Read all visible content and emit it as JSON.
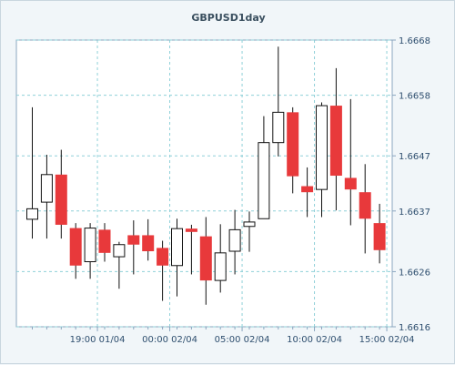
{
  "chart_data": {
    "type": "candlestick",
    "title": "GBPUSD1day",
    "ylim": [
      1.6616,
      1.6668
    ],
    "y_ticks": [
      "1.6616",
      "1.6626",
      "1.6637",
      "1.6647",
      "1.6658",
      "1.6668"
    ],
    "y_tick_values": [
      1.6616,
      1.6626,
      1.6637,
      1.6647,
      1.6658,
      1.6668
    ],
    "x_ticks": [
      {
        "label": "19:00 01/04",
        "index": 4.5
      },
      {
        "label": "00:00 02/04",
        "index": 9.5
      },
      {
        "label": "05:00 02/04",
        "index": 14.5
      },
      {
        "label": "10:00 02/04",
        "index": 19.5
      },
      {
        "label": "15:00 02/04",
        "index": 24.5
      }
    ],
    "up_color": "#ffffff",
    "down_color": "#e8393b",
    "grid": true,
    "candles": [
      {
        "o": 1.66355,
        "h": 1.66558,
        "l": 1.6632,
        "c": 1.66374
      },
      {
        "o": 1.66386,
        "h": 1.66472,
        "l": 1.6632,
        "c": 1.66436
      },
      {
        "o": 1.66436,
        "h": 1.66481,
        "l": 1.6632,
        "c": 1.66345
      },
      {
        "o": 1.66339,
        "h": 1.66348,
        "l": 1.66247,
        "c": 1.66271
      },
      {
        "o": 1.66278,
        "h": 1.66348,
        "l": 1.66247,
        "c": 1.66339
      },
      {
        "o": 1.66336,
        "h": 1.66348,
        "l": 1.66278,
        "c": 1.66294
      },
      {
        "o": 1.66287,
        "h": 1.66314,
        "l": 1.66229,
        "c": 1.66309
      },
      {
        "o": 1.66326,
        "h": 1.66353,
        "l": 1.66255,
        "c": 1.66309
      },
      {
        "o": 1.66326,
        "h": 1.66355,
        "l": 1.6628,
        "c": 1.66297
      },
      {
        "o": 1.66303,
        "h": 1.66316,
        "l": 1.66207,
        "c": 1.66271
      },
      {
        "o": 1.66271,
        "h": 1.66356,
        "l": 1.66215,
        "c": 1.66338
      },
      {
        "o": 1.66338,
        "h": 1.66345,
        "l": 1.66255,
        "c": 1.66332
      },
      {
        "o": 1.66324,
        "h": 1.66359,
        "l": 1.662,
        "c": 1.66244
      },
      {
        "o": 1.66244,
        "h": 1.66346,
        "l": 1.66222,
        "c": 1.66294
      },
      {
        "o": 1.66297,
        "h": 1.66372,
        "l": 1.66255,
        "c": 1.66336
      },
      {
        "o": 1.66342,
        "h": 1.66369,
        "l": 1.66296,
        "c": 1.6635
      },
      {
        "o": 1.66356,
        "h": 1.66542,
        "l": 1.66356,
        "c": 1.66494
      },
      {
        "o": 1.66494,
        "h": 1.66668,
        "l": 1.66469,
        "c": 1.66549
      },
      {
        "o": 1.66549,
        "h": 1.66558,
        "l": 1.66402,
        "c": 1.66433
      },
      {
        "o": 1.66415,
        "h": 1.66449,
        "l": 1.66359,
        "c": 1.66404
      },
      {
        "o": 1.66409,
        "h": 1.66567,
        "l": 1.66359,
        "c": 1.66561
      },
      {
        "o": 1.66561,
        "h": 1.66629,
        "l": 1.66371,
        "c": 1.66434
      },
      {
        "o": 1.6643,
        "h": 1.66573,
        "l": 1.66344,
        "c": 1.66409
      },
      {
        "o": 1.66404,
        "h": 1.66455,
        "l": 1.66293,
        "c": 1.66356
      },
      {
        "o": 1.66348,
        "h": 1.66383,
        "l": 1.66275,
        "c": 1.66299
      }
    ]
  }
}
